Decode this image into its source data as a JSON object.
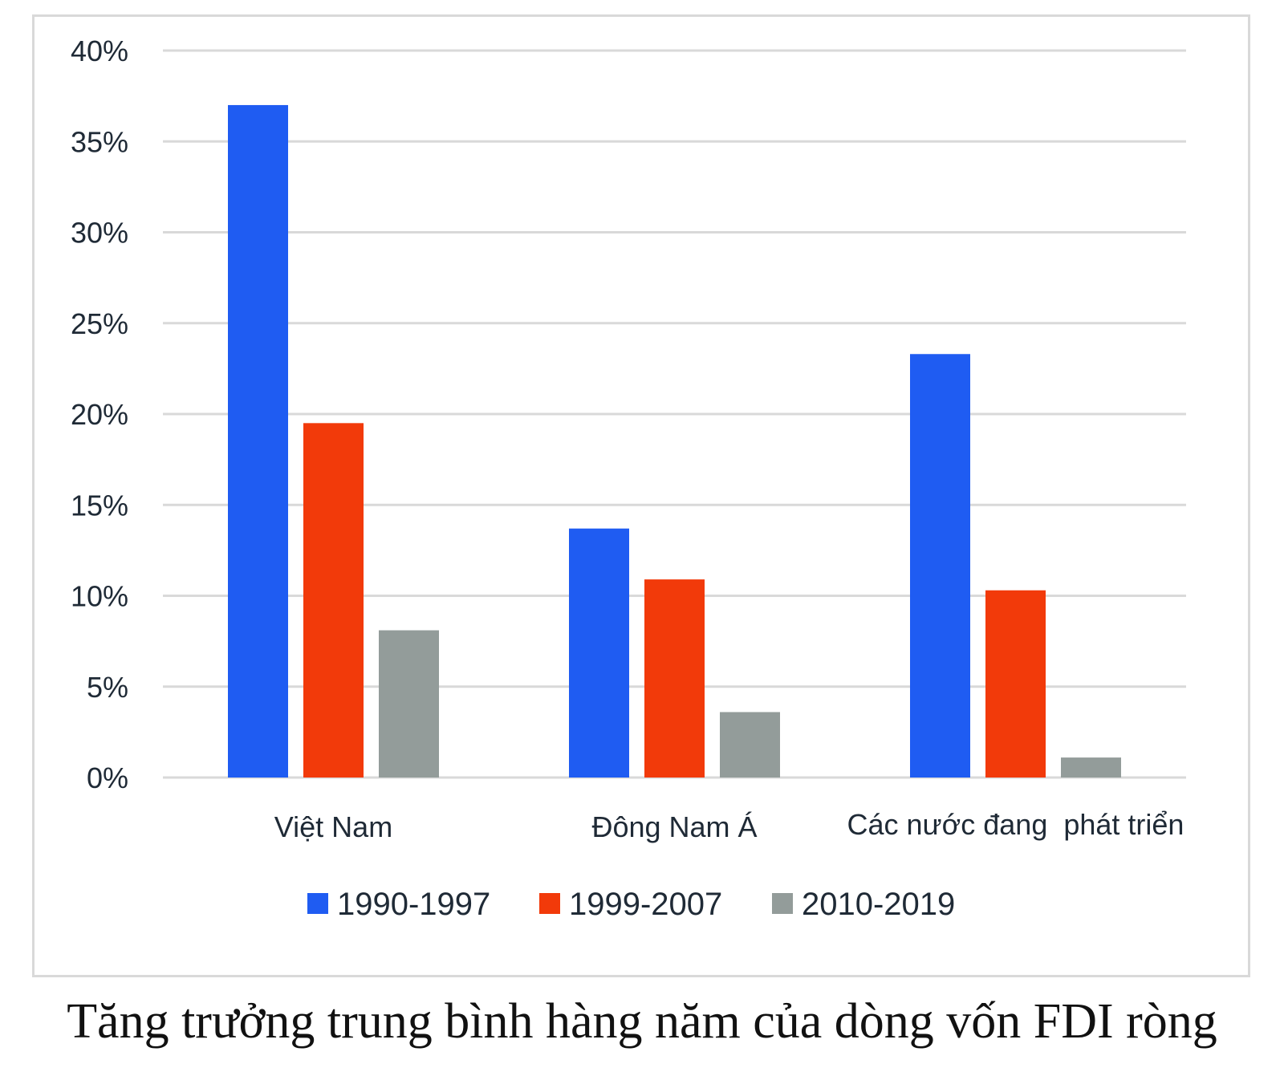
{
  "chart_data": {
    "type": "bar",
    "title": "Tăng trưởng trung bình hàng năm của dòng vốn FDI ròng",
    "categories": [
      "Việt Nam",
      "Đông Nam Á",
      "Các nước đang  phát triển"
    ],
    "series": [
      {
        "name": "1990-1997",
        "color": "#1f5cf2",
        "values": [
          37.0,
          13.7,
          23.3
        ]
      },
      {
        "name": "1999-2007",
        "color": "#f23a0a",
        "values": [
          19.5,
          10.9,
          10.3
        ]
      },
      {
        "name": "2010-2019",
        "color": "#939c9a",
        "values": [
          8.1,
          3.6,
          1.1
        ]
      }
    ],
    "ylim": [
      0,
      40
    ],
    "yticks": [
      "0%",
      "5%",
      "10%",
      "15%",
      "20%",
      "25%",
      "30%",
      "35%",
      "40%"
    ],
    "grid": true,
    "legend_position": "bottom"
  }
}
